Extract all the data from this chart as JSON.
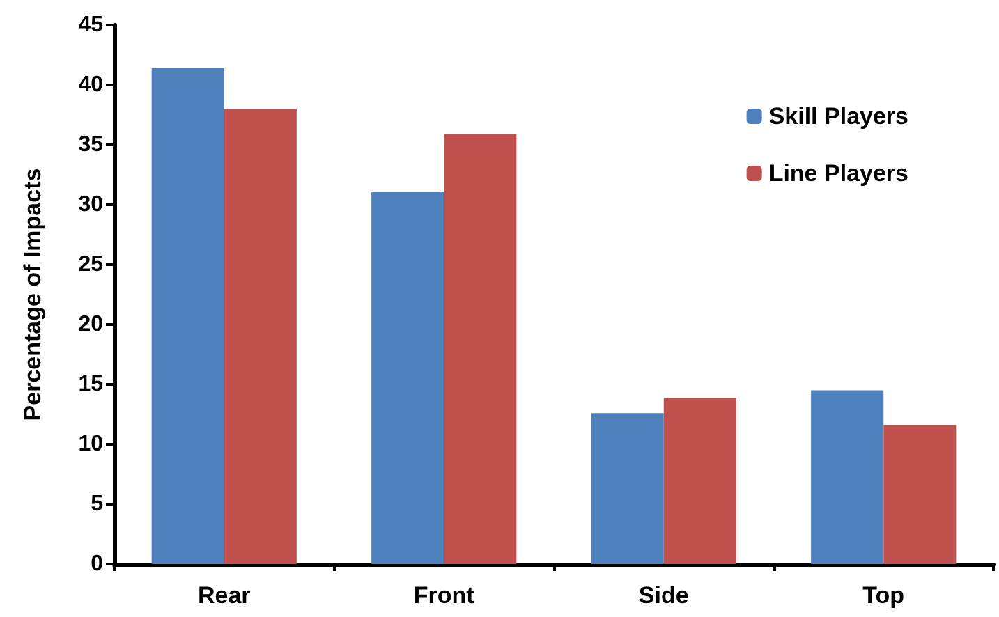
{
  "chart_data": {
    "type": "bar",
    "ylabel": "Percentage of Impacts",
    "categories": [
      "Rear",
      "Front",
      "Side",
      "Top"
    ],
    "series": [
      {
        "name": "Skill Players",
        "color": "#4f81bd",
        "values": [
          41.4,
          31.1,
          12.6,
          14.5
        ]
      },
      {
        "name": "Line Players",
        "color": "#c0504d",
        "values": [
          38.0,
          35.9,
          13.9,
          11.6
        ]
      }
    ],
    "ylim": [
      0,
      45
    ],
    "yticks": [
      0,
      5,
      10,
      15,
      20,
      25,
      30,
      35,
      40,
      45
    ],
    "grid": false,
    "legend": "top right"
  }
}
